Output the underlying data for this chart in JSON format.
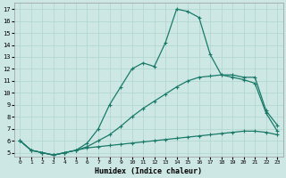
{
  "xlabel": "Humidex (Indice chaleur)",
  "background_color": "#cde8e4",
  "grid_color": "#b0d5ce",
  "line_color": "#1a7a6a",
  "xlim": [
    -0.5,
    23.5
  ],
  "ylim": [
    4.7,
    17.5
  ],
  "xticks": [
    0,
    1,
    2,
    3,
    4,
    5,
    6,
    7,
    8,
    9,
    10,
    11,
    12,
    13,
    14,
    15,
    16,
    17,
    18,
    19,
    20,
    21,
    22,
    23
  ],
  "yticks": [
    5,
    6,
    7,
    8,
    9,
    10,
    11,
    12,
    13,
    14,
    15,
    16,
    17
  ],
  "line1_x": [
    0,
    1,
    2,
    3,
    4,
    5,
    6,
    7,
    8,
    9,
    10,
    11,
    12,
    13,
    14,
    15,
    16,
    17,
    18,
    19,
    20,
    21,
    22,
    23
  ],
  "line1_y": [
    6.0,
    5.2,
    5.0,
    4.8,
    5.0,
    5.2,
    5.4,
    5.5,
    5.6,
    5.7,
    5.8,
    5.9,
    6.0,
    6.1,
    6.2,
    6.3,
    6.4,
    6.5,
    6.6,
    6.7,
    6.8,
    6.8,
    6.7,
    6.5
  ],
  "line2_x": [
    0,
    1,
    2,
    3,
    4,
    5,
    6,
    7,
    8,
    9,
    10,
    11,
    12,
    13,
    14,
    15,
    16,
    17,
    18,
    19,
    20,
    21,
    22,
    23
  ],
  "line2_y": [
    6.0,
    5.2,
    5.0,
    4.8,
    5.0,
    5.2,
    5.5,
    6.0,
    6.5,
    7.2,
    8.0,
    8.7,
    9.3,
    9.9,
    10.5,
    11.0,
    11.3,
    11.4,
    11.5,
    11.3,
    11.1,
    10.8,
    8.3,
    6.8
  ],
  "line3_x": [
    0,
    1,
    2,
    3,
    4,
    5,
    6,
    7,
    8,
    9,
    10,
    11,
    12,
    13,
    14,
    15,
    16,
    17,
    18,
    19,
    20,
    21,
    22,
    23
  ],
  "line3_y": [
    6.0,
    5.2,
    5.0,
    4.8,
    5.0,
    5.2,
    5.8,
    7.0,
    9.0,
    10.5,
    12.0,
    12.5,
    12.2,
    14.2,
    17.0,
    16.8,
    16.3,
    13.2,
    11.5,
    11.5,
    11.3,
    11.3,
    8.5,
    7.3
  ]
}
